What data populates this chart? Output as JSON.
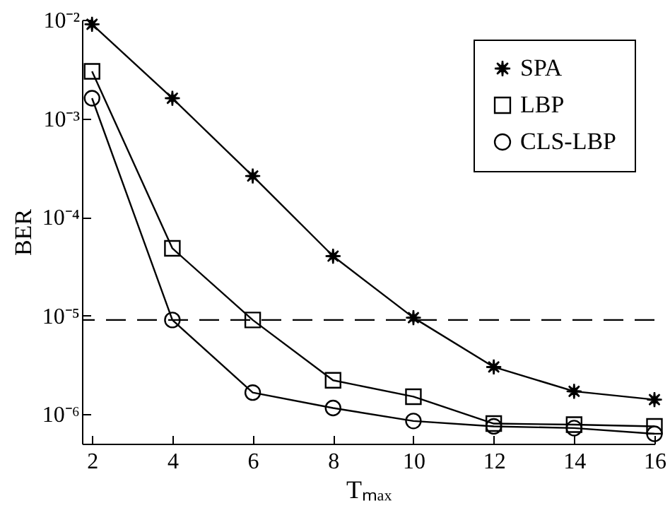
{
  "chart_data": {
    "type": "line",
    "xlabel": "Tₘₐₓ",
    "ylabel": "BER",
    "x": [
      2,
      4,
      6,
      8,
      10,
      12,
      14,
      16
    ],
    "series": [
      {
        "name": "SPA",
        "color": "#000000",
        "marker": "star",
        "values": [
          0.009,
          0.0016,
          0.00026,
          4e-05,
          9.5e-06,
          3e-06,
          1.7e-06,
          1.4e-06
        ]
      },
      {
        "name": "LBP",
        "color": "#000000",
        "marker": "square",
        "values": [
          0.003,
          4.8e-05,
          9e-06,
          2.2e-06,
          1.5e-06,
          8e-07,
          7.8e-07,
          7.5e-07
        ]
      },
      {
        "name": "CLS-LBP",
        "color": "#000000",
        "marker": "circle",
        "values": [
          0.0016,
          9e-06,
          1.65e-06,
          1.15e-06,
          8.5e-07,
          7.5e-07,
          7.2e-07,
          6.3e-07
        ]
      }
    ],
    "log": "y",
    "xlim": [
      1.75,
      16
    ],
    "xticks": [
      2,
      4,
      6,
      8,
      10,
      12,
      14,
      16
    ],
    "ylim": [
      5e-07,
      0.01
    ],
    "yticks": [
      {
        "value": 1e-06,
        "label": "10⁻⁶"
      },
      {
        "value": 1e-05,
        "label": "10⁻⁵"
      },
      {
        "value": 0.0001,
        "label": "10⁻⁴"
      },
      {
        "value": 0.001,
        "label": "10⁻³"
      },
      {
        "value": 0.01,
        "label": "10⁻²"
      }
    ],
    "ref_lines": [
      {
        "axis": "y",
        "value": 9e-06,
        "color": "#000000",
        "line_style": "dashed"
      }
    ],
    "legend": "top right",
    "grid": false,
    "line_style": "solid"
  }
}
